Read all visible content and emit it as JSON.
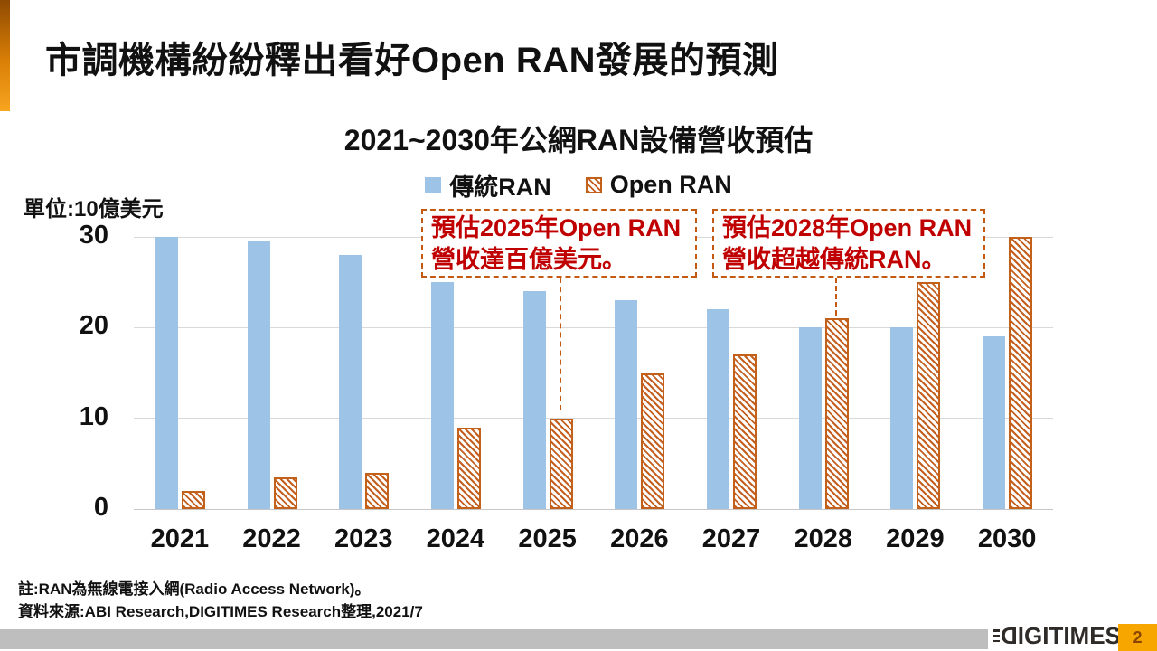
{
  "slide": {
    "title": "市調機構紛紛釋出看好Open RAN發展的預測",
    "page_number": "2",
    "logo_text": "DIGITIMES"
  },
  "chart_data": {
    "type": "bar",
    "title": "2021~2030年公網RAN設備營收預估",
    "unit_label": "單位:10億美元",
    "xlabel": "",
    "ylabel": "單位:10億美元",
    "categories": [
      "2021",
      "2022",
      "2023",
      "2024",
      "2025",
      "2026",
      "2027",
      "2028",
      "2029",
      "2030"
    ],
    "series": [
      {
        "name": "傳統RAN",
        "style": "solid",
        "color": "#9DC3E6",
        "values": [
          30,
          29.5,
          28,
          25,
          24,
          23,
          22,
          20,
          20,
          19
        ]
      },
      {
        "name": "Open RAN",
        "style": "hatched",
        "color": "#C55F1F",
        "values": [
          2,
          3.5,
          4,
          9,
          10,
          15,
          17,
          21,
          25,
          30
        ]
      }
    ],
    "ylim": [
      0,
      30
    ],
    "yticks": [
      0,
      10,
      20,
      30
    ],
    "grid": true,
    "legend_position": "top"
  },
  "annotations": {
    "box1": {
      "line1": "預估2025年Open RAN",
      "line2": "營收達百億美元。",
      "target_year": "2025"
    },
    "box2": {
      "line1": "預估2028年Open RAN",
      "line2": "營收超越傳統RAN。",
      "target_year": "2028"
    }
  },
  "notes": {
    "note1": "註:RAN為無線電接入網(Radio Access Network)。",
    "note2": "資料來源:ABI Research,DIGITIMES Research整理,2021/7"
  },
  "colors": {
    "traditional_ran": "#9DC3E6",
    "open_ran_hatch": "#C55F1F",
    "annotation_text": "#C00000",
    "annotation_border": "#C45911",
    "accent_orange": "#F8A51F",
    "footer_gray": "#BEBEBE",
    "page_badge_orange": "#F7A600"
  }
}
